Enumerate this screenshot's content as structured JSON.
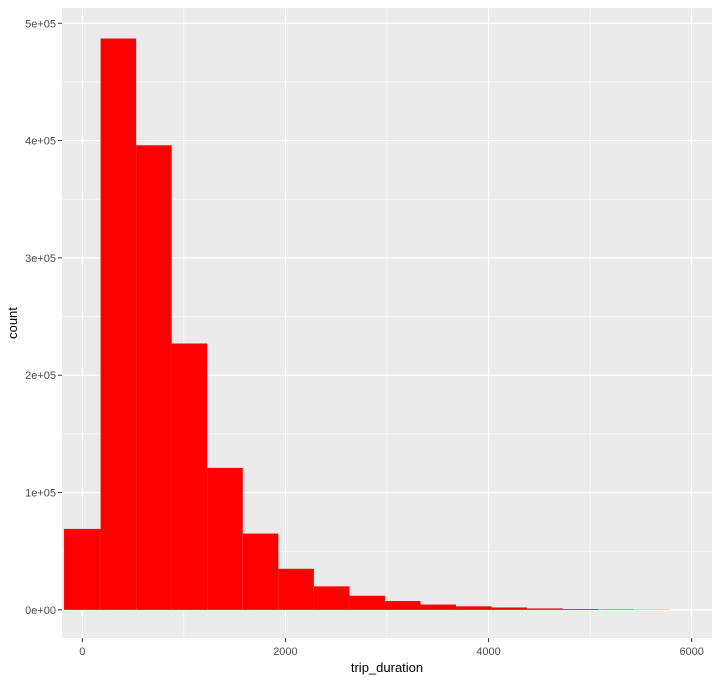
{
  "chart_data": {
    "type": "bar",
    "subtype": "histogram",
    "xlabel": "trip_duration",
    "ylabel": "count",
    "xlim": [
      -200,
      6200
    ],
    "ylim": [
      -24000,
      513000
    ],
    "x_ticks": [
      0,
      2000,
      4000,
      6000
    ],
    "x_tick_labels": [
      "0",
      "2000",
      "4000",
      "6000"
    ],
    "y_ticks": [
      0,
      100000,
      200000,
      300000,
      400000,
      500000
    ],
    "y_tick_labels": [
      "0e+00",
      "1e+05",
      "2e+05",
      "3e+05",
      "4e+05",
      "5e+05"
    ],
    "grid": true,
    "theme": "ggplot2 grey",
    "colors": {
      "bar_fill": "#ff0000",
      "panel_background": "#ebebeb",
      "grid_line": "#ffffff"
    },
    "bins": [
      {
        "x0": -180,
        "x1": 180,
        "count": 69000
      },
      {
        "x0": 180,
        "x1": 530,
        "count": 487000
      },
      {
        "x0": 530,
        "x1": 880,
        "count": 396000
      },
      {
        "x0": 880,
        "x1": 1230,
        "count": 227000
      },
      {
        "x0": 1230,
        "x1": 1580,
        "count": 121000
      },
      {
        "x0": 1580,
        "x1": 1930,
        "count": 65000
      },
      {
        "x0": 1930,
        "x1": 2280,
        "count": 35000
      },
      {
        "x0": 2280,
        "x1": 2630,
        "count": 20000
      },
      {
        "x0": 2630,
        "x1": 2980,
        "count": 12000
      },
      {
        "x0": 2980,
        "x1": 3330,
        "count": 7500
      },
      {
        "x0": 3330,
        "x1": 3680,
        "count": 4500
      },
      {
        "x0": 3680,
        "x1": 4030,
        "count": 3000
      },
      {
        "x0": 4030,
        "x1": 4380,
        "count": 2000
      },
      {
        "x0": 4380,
        "x1": 4730,
        "count": 1200
      },
      {
        "x0": 4730,
        "x1": 5080,
        "count": 700
      },
      {
        "x0": 5080,
        "x1": 5430,
        "count": 350
      },
      {
        "x0": 5430,
        "x1": 5780,
        "count": 150
      }
    ]
  }
}
